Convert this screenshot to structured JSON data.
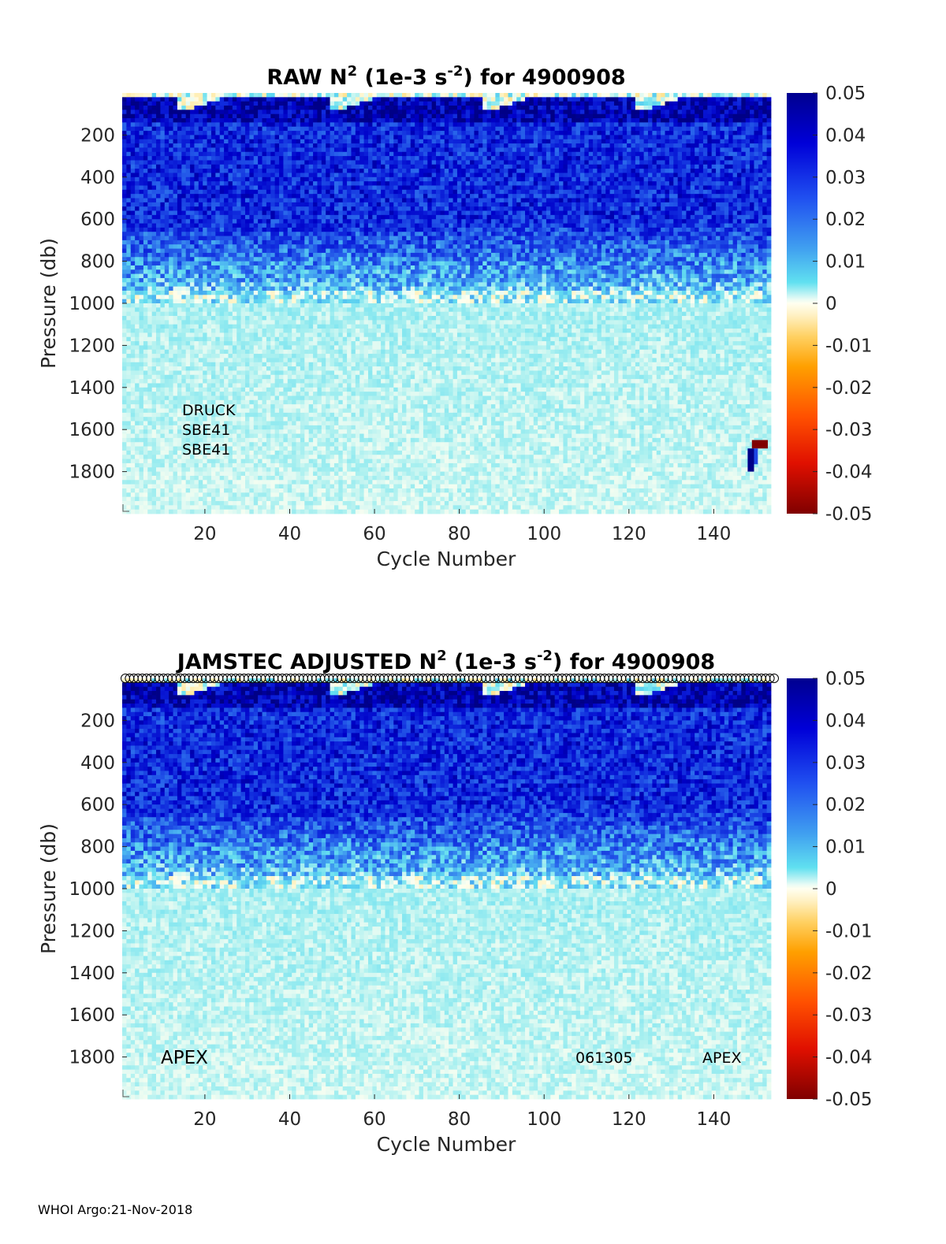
{
  "chart_data": [
    {
      "type": "heatmap",
      "title": {
        "pre": "RAW N",
        "sup1": "2",
        "mid": " (1e-3 s",
        "sup2": "-2",
        "post": ") for 4900908"
      },
      "xlabel": "Cycle Number",
      "ylabel": "Pressure (db)",
      "xlim": [
        1,
        153
      ],
      "ylim": [
        2000,
        0
      ],
      "xticks": [
        20,
        40,
        60,
        80,
        100,
        120,
        140
      ],
      "yticks": [
        200,
        400,
        600,
        800,
        1000,
        1200,
        1400,
        1600,
        1800
      ],
      "colorbar": {
        "range": [
          -0.05,
          0.05
        ],
        "ticks": [
          "0.05",
          "0.04",
          "0.03",
          "0.02",
          "0.01",
          "0",
          "-0.01",
          "-0.02",
          "-0.03",
          "-0.04",
          "-0.05"
        ],
        "colormap": "jet-like with white near zero"
      },
      "annotations": [
        "DRUCK",
        "SBE41",
        "SBE41"
      ],
      "anomaly": {
        "cycles": [
          148,
          153
        ],
        "pressure": [
          1650,
          1800
        ],
        "values": [
          -0.05,
          0.05
        ]
      },
      "value_profile": {
        "surface_mixed_layer": 0.0,
        "upper_200_600db": 0.035,
        "mid_800db": 0.02,
        "below_1000db": 0.006
      }
    },
    {
      "type": "heatmap",
      "title": {
        "pre": "JAMSTEC  ADJUSTED N",
        "sup1": "2",
        "mid": " (1e-3 s",
        "sup2": "-2",
        "post": ") for 4900908"
      },
      "xlabel": "Cycle Number",
      "ylabel": "Pressure (db)",
      "xlim": [
        1,
        153
      ],
      "ylim": [
        2000,
        0
      ],
      "xticks": [
        20,
        40,
        60,
        80,
        100,
        120,
        140
      ],
      "yticks": [
        200,
        400,
        600,
        800,
        1000,
        1200,
        1400,
        1600,
        1800
      ],
      "colorbar": {
        "range": [
          -0.05,
          0.05
        ],
        "ticks": [
          "0.05",
          "0.04",
          "0.03",
          "0.02",
          "0.01",
          "0",
          "-0.01",
          "-0.02",
          "-0.03",
          "-0.04",
          "-0.05"
        ],
        "colormap": "jet-like with white near zero"
      },
      "annotations": [
        "APEX",
        "061305",
        "APEX"
      ],
      "qc_markers": "circle per cycle along top edge",
      "value_profile": {
        "surface_mixed_layer": 0.0,
        "upper_200_600db": 0.035,
        "mid_800db": 0.02,
        "below_1000db": 0.006
      }
    }
  ],
  "footer": "WHOI Argo:21-Nov-2018"
}
